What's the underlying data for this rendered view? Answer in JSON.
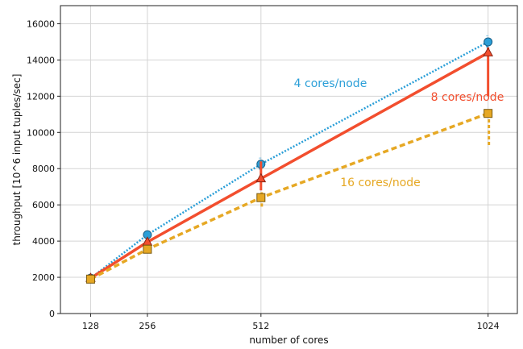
{
  "chart_data": {
    "type": "line",
    "xlabel": "number of cores",
    "ylabel": "throughput [10^6 input tuples/sec]",
    "x": [
      128,
      256,
      512,
      1024
    ],
    "xticks": [
      128,
      256,
      512,
      1024
    ],
    "xlim": [
      60,
      1090
    ],
    "ylim": [
      0,
      17000
    ],
    "yticks": [
      0,
      2000,
      4000,
      6000,
      8000,
      10000,
      12000,
      14000,
      16000
    ],
    "grid": true,
    "series": [
      {
        "name": "4 cores/node",
        "color": "#2b9fd8",
        "style": "dotted",
        "marker": "circle",
        "values": [
          1950,
          4350,
          8250,
          15000
        ],
        "error_low": [
          1900,
          4250,
          7950,
          14700
        ],
        "error_high": [
          2000,
          4450,
          8600,
          15350
        ]
      },
      {
        "name": "8 cores/node",
        "color": "#f24e2e",
        "style": "solid",
        "marker": "triangle",
        "values": [
          1950,
          3950,
          7450,
          14400
        ],
        "error_low": [
          1900,
          3800,
          6800,
          12000
        ],
        "error_high": [
          2000,
          4100,
          8400,
          14700
        ]
      },
      {
        "name": "16 cores/node",
        "color": "#e6a824",
        "style": "dashed",
        "marker": "square",
        "values": [
          1900,
          3550,
          6400,
          11050
        ],
        "error_low": [
          1850,
          3450,
          5900,
          9300
        ],
        "error_high": [
          1950,
          3650,
          6700,
          11200
        ]
      }
    ]
  }
}
